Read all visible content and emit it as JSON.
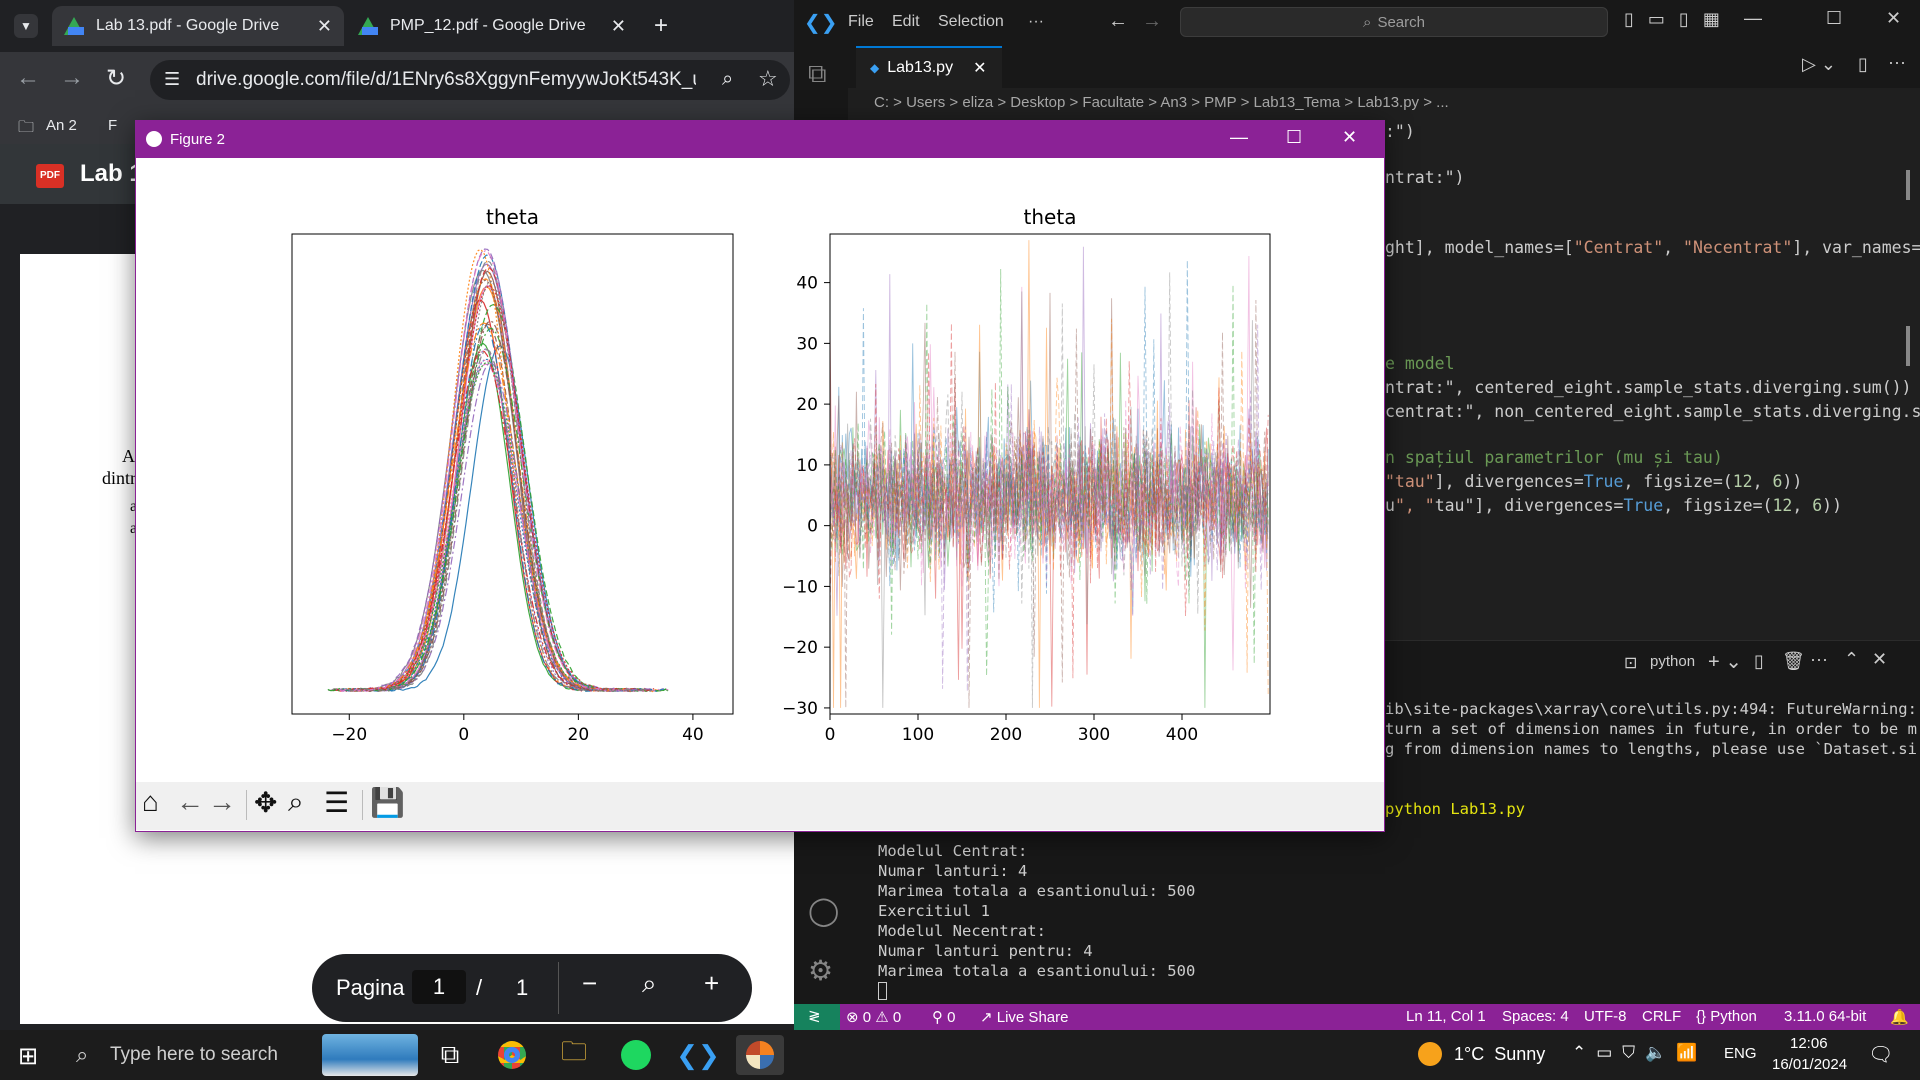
{
  "chrome": {
    "tabs": [
      {
        "title": "Lab 13.pdf - Google Drive",
        "active": true
      },
      {
        "title": "PMP_12.pdf - Google Drive",
        "active": false
      }
    ],
    "url": "drive.google.com/file/d/1ENry6s8XggynFemyywJoKt543K_uG28o...",
    "bookmarks": [
      "An 2",
      "F"
    ],
    "pdf_title": "Lab 1",
    "pdf_badge": "PDF",
    "pdf_fragments": [
      "A",
      "dintr",
      "a",
      "a"
    ],
    "page_nav": {
      "label": "Pagina",
      "current": "1",
      "separator": "/",
      "total": "1"
    }
  },
  "vscode": {
    "menu": [
      "File",
      "Edit",
      "Selection",
      "···"
    ],
    "search_placeholder": "Search",
    "tab_title": "Lab13.py",
    "breadcrumb": "C: > Users > eliza > Desktop > Facultate > An3 > PMP > Lab13_Tema > Lab13.py > ...",
    "code_lines": [
      {
        "text": ":\")",
        "top": 122
      },
      {
        "text": "ntrat:\")",
        "top": 168
      },
      {
        "text": "ght], model_names=[\"Centrat\", \"Necentrat\"], var_names=",
        "top": 238
      },
      {
        "text": "e model",
        "top": 354
      },
      {
        "text": "ntrat:\", centered_eight.sample_stats.diverging.sum())",
        "top": 378
      },
      {
        "text": "centrat:\", non_centered_eight.sample_stats.diverging.sum",
        "top": 402
      },
      {
        "text": "n spațiul parametrilor (mu și tau)",
        "top": 448
      },
      {
        "text": "\"tau\"], divergences=True, figsize=(12, 6))",
        "top": 472
      },
      {
        "text": "u\", \"tau\"], divergences=True, figsize=(12, 6))",
        "top": 496
      }
    ],
    "terminal_tab": "python",
    "terminal_right_lines": [
      {
        "text": "ib\\site-packages\\xarray\\core\\utils.py:494: FutureWarning:",
        "top": 700
      },
      {
        "text": "turn a set of dimension names in future, in order to be m",
        "top": 720
      },
      {
        "text": "g from dimension names to lengths, please use `Dataset.si",
        "top": 740
      },
      {
        "text": "python Lab13.py",
        "top": 800
      }
    ],
    "terminal_lines": [
      "Modelul Centrat:",
      "Numar lanturi: 4",
      "Marimea totala a esantionului: 500",
      "Exercitiul 1",
      "Modelul Necentrat:",
      "Numar lanturi pentru: 4",
      "Marimea totala a esantionului: 500"
    ],
    "status": {
      "errors": "0",
      "warnings": "0",
      "ports": "0",
      "live_share": "Live Share",
      "position": "Ln 11, Col 1",
      "spaces": "Spaces: 4",
      "encoding": "UTF-8",
      "eol": "CRLF",
      "language": "Python",
      "interpreter": "3.11.0 64-bit"
    }
  },
  "figure": {
    "window_title": "Figure 2",
    "tools": [
      "home-icon",
      "back-icon",
      "forward-icon",
      "pan-icon",
      "zoom-icon",
      "configure-icon",
      "save-icon"
    ]
  },
  "chart_data": [
    {
      "type": "line",
      "title": "theta",
      "description_series": "overlaid kernel density estimates for 8 theta dimensions × 4 chains",
      "x_ticks": [
        -20,
        0,
        20,
        40
      ],
      "xlim": [
        -30,
        47
      ],
      "peak_x": 4,
      "series_count": 32,
      "colors": [
        "#1f77b4",
        "#ff7f0e",
        "#2ca02c",
        "#d62728",
        "#9467bd",
        "#8c564b",
        "#e377c2",
        "#7f7f7f"
      ]
    },
    {
      "type": "line",
      "title": "theta",
      "x_ticks": [
        0,
        100,
        200,
        300,
        400
      ],
      "y_ticks": [
        -30,
        -20,
        -10,
        0,
        10,
        20,
        30,
        40
      ],
      "xlim": [
        0,
        500
      ],
      "ylim": [
        -31,
        48
      ],
      "mean": 4.5,
      "colors": [
        "#1f77b4",
        "#ff7f0e",
        "#2ca02c",
        "#d62728",
        "#9467bd",
        "#8c564b",
        "#e377c2",
        "#7f7f7f"
      ]
    }
  ],
  "taskbar": {
    "search_placeholder": "Type here to search",
    "weather": "1°C  Sunny",
    "lang": "ENG",
    "time": "12:06",
    "date": "16/01/2024"
  }
}
